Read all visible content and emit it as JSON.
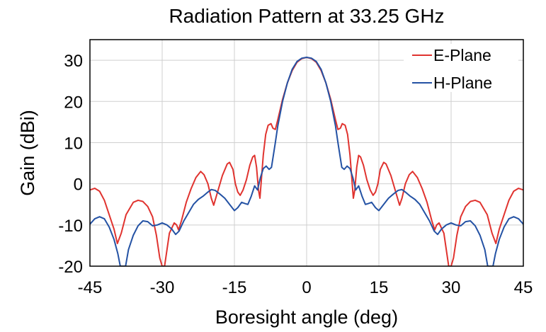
{
  "chart_data": {
    "type": "line",
    "title": "Radiation Pattern at 33.25 GHz",
    "xlabel": "Boresight angle (deg)",
    "ylabel": "Gain (dBi)",
    "xlim": [
      -45,
      45
    ],
    "ylim": [
      -20,
      35
    ],
    "x_ticks": [
      -45,
      -30,
      -15,
      0,
      15,
      30,
      45
    ],
    "y_ticks": [
      -20,
      -10,
      0,
      10,
      20,
      30
    ],
    "grid": true,
    "legend_position": "top-right",
    "series": [
      {
        "name": "E-Plane",
        "color": "#e0332f",
        "points": [
          [
            -45,
            -1.5
          ],
          [
            -44,
            -1.1
          ],
          [
            -43,
            -1.8
          ],
          [
            -42,
            -4.0
          ],
          [
            -41,
            -7.5
          ],
          [
            -40,
            -11.0
          ],
          [
            -39.3,
            -14.5
          ],
          [
            -38.5,
            -12.0
          ],
          [
            -37.5,
            -7.5
          ],
          [
            -36,
            -4.5
          ],
          [
            -35,
            -4.0
          ],
          [
            -34,
            -4.3
          ],
          [
            -33,
            -5.5
          ],
          [
            -32,
            -8.0
          ],
          [
            -31.2,
            -12.5
          ],
          [
            -30.5,
            -18.0
          ],
          [
            -30,
            -20.0
          ],
          [
            -29.5,
            -20.0
          ],
          [
            -28.5,
            -12.0
          ],
          [
            -27.5,
            -9.5
          ],
          [
            -27,
            -10.0
          ],
          [
            -26.6,
            -11.2
          ],
          [
            -26,
            -9.0
          ],
          [
            -25,
            -4.5
          ],
          [
            -24,
            -1.2
          ],
          [
            -23,
            1.5
          ],
          [
            -22,
            3.0
          ],
          [
            -21.3,
            2.2
          ],
          [
            -20.5,
            0.0
          ],
          [
            -19.8,
            -3.5
          ],
          [
            -19.3,
            -5.2
          ],
          [
            -18.5,
            -2.0
          ],
          [
            -17.5,
            2.0
          ],
          [
            -16.5,
            4.8
          ],
          [
            -16,
            5.2
          ],
          [
            -15.3,
            3.5
          ],
          [
            -14.8,
            0.0
          ],
          [
            -14.3,
            -2.0
          ],
          [
            -13.8,
            -2.8
          ],
          [
            -13.2,
            -1.5
          ],
          [
            -12.5,
            1.0
          ],
          [
            -11.8,
            4.5
          ],
          [
            -11.2,
            6.5
          ],
          [
            -10.8,
            6.9
          ],
          [
            -10.4,
            4.0
          ],
          [
            -10,
            -1.5
          ],
          [
            -9.7,
            -3.5
          ],
          [
            -9.4,
            1.0
          ],
          [
            -9,
            7.0
          ],
          [
            -8.5,
            12.0
          ],
          [
            -8,
            14.2
          ],
          [
            -7.4,
            14.6
          ],
          [
            -7,
            13.5
          ],
          [
            -6.5,
            13.2
          ],
          [
            -6,
            15.5
          ],
          [
            -5,
            20.5
          ],
          [
            -4,
            24.5
          ],
          [
            -3,
            27.5
          ],
          [
            -2,
            29.5
          ],
          [
            -1,
            30.4
          ],
          [
            0,
            30.7
          ],
          [
            1,
            30.4
          ],
          [
            2,
            29.5
          ],
          [
            3,
            27.5
          ],
          [
            4,
            24.5
          ],
          [
            5,
            20.5
          ],
          [
            6,
            15.5
          ],
          [
            6.5,
            13.2
          ],
          [
            7,
            13.5
          ],
          [
            7.4,
            14.6
          ],
          [
            8,
            14.2
          ],
          [
            8.5,
            12.0
          ],
          [
            9,
            7.0
          ],
          [
            9.4,
            1.0
          ],
          [
            9.7,
            -3.5
          ],
          [
            10,
            -1.5
          ],
          [
            10.4,
            4.0
          ],
          [
            10.8,
            6.9
          ],
          [
            11.2,
            6.5
          ],
          [
            11.8,
            4.5
          ],
          [
            12.5,
            1.0
          ],
          [
            13.2,
            -1.5
          ],
          [
            13.8,
            -2.8
          ],
          [
            14.3,
            -2.0
          ],
          [
            14.8,
            0.0
          ],
          [
            15.3,
            3.5
          ],
          [
            16,
            5.2
          ],
          [
            16.5,
            4.8
          ],
          [
            17.5,
            2.0
          ],
          [
            18.5,
            -2.0
          ],
          [
            19.3,
            -5.2
          ],
          [
            19.8,
            -3.5
          ],
          [
            20.5,
            0.0
          ],
          [
            21.3,
            2.2
          ],
          [
            22,
            3.0
          ],
          [
            23,
            1.5
          ],
          [
            24,
            -1.2
          ],
          [
            25,
            -4.5
          ],
          [
            26,
            -9.0
          ],
          [
            26.6,
            -11.2
          ],
          [
            27,
            -10.0
          ],
          [
            27.5,
            -9.5
          ],
          [
            28.5,
            -12.0
          ],
          [
            29.5,
            -20.0
          ],
          [
            30,
            -20.0
          ],
          [
            30.5,
            -18.0
          ],
          [
            31.2,
            -12.5
          ],
          [
            32,
            -8.0
          ],
          [
            33,
            -5.5
          ],
          [
            34,
            -4.3
          ],
          [
            35,
            -4.0
          ],
          [
            36,
            -4.5
          ],
          [
            37.5,
            -7.5
          ],
          [
            38.5,
            -12.0
          ],
          [
            39.3,
            -14.5
          ],
          [
            40,
            -11.0
          ],
          [
            41,
            -7.5
          ],
          [
            42,
            -4.0
          ],
          [
            43,
            -1.8
          ],
          [
            44,
            -1.1
          ],
          [
            45,
            -1.5
          ]
        ]
      },
      {
        "name": "H-Plane",
        "color": "#2452a4",
        "points": [
          [
            -45,
            -9.8
          ],
          [
            -44,
            -8.5
          ],
          [
            -43,
            -8.0
          ],
          [
            -42,
            -8.5
          ],
          [
            -41,
            -10.5
          ],
          [
            -40,
            -13.5
          ],
          [
            -39.2,
            -17.0
          ],
          [
            -38.7,
            -20.0
          ],
          [
            -37.6,
            -20.0
          ],
          [
            -37,
            -16.0
          ],
          [
            -36,
            -12.5
          ],
          [
            -35,
            -10.2
          ],
          [
            -34,
            -9.0
          ],
          [
            -33,
            -9.2
          ],
          [
            -32,
            -10.2
          ],
          [
            -31,
            -10.0
          ],
          [
            -30,
            -9.5
          ],
          [
            -29,
            -10.0
          ],
          [
            -28,
            -11.0
          ],
          [
            -27.2,
            -12.3
          ],
          [
            -26.5,
            -11.5
          ],
          [
            -25.5,
            -9.0
          ],
          [
            -24.5,
            -7.0
          ],
          [
            -23.5,
            -5.0
          ],
          [
            -22.5,
            -3.8
          ],
          [
            -21.5,
            -3.0
          ],
          [
            -20.5,
            -2.0
          ],
          [
            -19.8,
            -1.4
          ],
          [
            -19,
            -1.6
          ],
          [
            -18,
            -2.5
          ],
          [
            -17,
            -3.5
          ],
          [
            -16,
            -5.0
          ],
          [
            -15,
            -6.5
          ],
          [
            -14.3,
            -5.8
          ],
          [
            -13.5,
            -4.5
          ],
          [
            -12.8,
            -4.8
          ],
          [
            -12.2,
            -5.0
          ],
          [
            -11.5,
            -3.0
          ],
          [
            -10.8,
            -0.5
          ],
          [
            -10.2,
            -1.5
          ],
          [
            -9.6,
            1.5
          ],
          [
            -9,
            3.7
          ],
          [
            -8.4,
            4.3
          ],
          [
            -7.8,
            3.5
          ],
          [
            -7.3,
            4.0
          ],
          [
            -6.5,
            10.0
          ],
          [
            -6,
            14.0
          ],
          [
            -5,
            20.0
          ],
          [
            -4,
            24.5
          ],
          [
            -3,
            27.8
          ],
          [
            -2,
            29.7
          ],
          [
            -1,
            30.5
          ],
          [
            0,
            30.7
          ],
          [
            1,
            30.5
          ],
          [
            2,
            29.7
          ],
          [
            3,
            27.8
          ],
          [
            4,
            24.5
          ],
          [
            5,
            20.0
          ],
          [
            6,
            14.0
          ],
          [
            6.5,
            10.0
          ],
          [
            7.3,
            4.0
          ],
          [
            7.8,
            3.5
          ],
          [
            8.4,
            4.3
          ],
          [
            9,
            3.7
          ],
          [
            9.6,
            1.5
          ],
          [
            10.2,
            -1.5
          ],
          [
            10.8,
            -0.5
          ],
          [
            11.5,
            -3.0
          ],
          [
            12.2,
            -5.0
          ],
          [
            12.8,
            -4.8
          ],
          [
            13.5,
            -4.5
          ],
          [
            14.3,
            -5.8
          ],
          [
            15,
            -6.5
          ],
          [
            16,
            -5.0
          ],
          [
            17,
            -3.5
          ],
          [
            18,
            -2.5
          ],
          [
            19,
            -1.6
          ],
          [
            19.8,
            -1.4
          ],
          [
            20.5,
            -2.0
          ],
          [
            21.5,
            -3.0
          ],
          [
            22.5,
            -3.8
          ],
          [
            23.5,
            -5.0
          ],
          [
            24.5,
            -7.0
          ],
          [
            25.5,
            -9.0
          ],
          [
            26.5,
            -11.5
          ],
          [
            27.2,
            -12.3
          ],
          [
            28,
            -11.0
          ],
          [
            29,
            -10.0
          ],
          [
            30,
            -9.5
          ],
          [
            31,
            -10.0
          ],
          [
            32,
            -10.2
          ],
          [
            33,
            -9.2
          ],
          [
            34,
            -9.0
          ],
          [
            35,
            -10.2
          ],
          [
            36,
            -12.5
          ],
          [
            37,
            -16.0
          ],
          [
            37.6,
            -20.0
          ],
          [
            38.7,
            -20.0
          ],
          [
            39.2,
            -17.0
          ],
          [
            40,
            -13.5
          ],
          [
            41,
            -10.5
          ],
          [
            42,
            -8.5
          ],
          [
            43,
            -8.0
          ],
          [
            44,
            -8.5
          ],
          [
            45,
            -9.8
          ]
        ]
      }
    ]
  }
}
